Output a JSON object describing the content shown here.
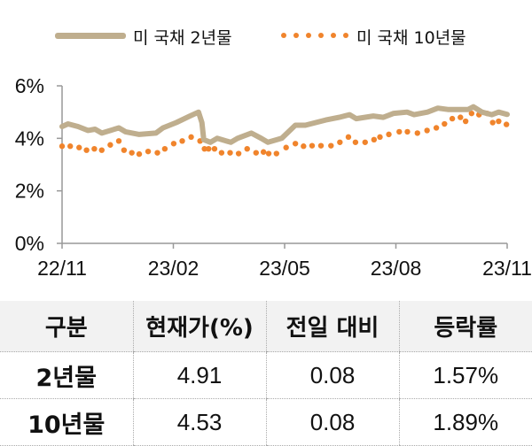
{
  "chart_data": {
    "type": "line",
    "title": "",
    "xlabel": "",
    "ylabel": "",
    "x_unit": "months since 22/11",
    "xlim": [
      0,
      12
    ],
    "ylim": [
      0,
      6
    ],
    "x_ticks": [
      {
        "x": 0,
        "label": "22/11"
      },
      {
        "x": 3,
        "label": "23/02"
      },
      {
        "x": 6,
        "label": "23/05"
      },
      {
        "x": 9,
        "label": "23/08"
      },
      {
        "x": 12,
        "label": "23/11"
      }
    ],
    "y_ticks": [
      {
        "y": 0,
        "label": "0%"
      },
      {
        "y": 2,
        "label": "2%"
      },
      {
        "y": 4,
        "label": "4%"
      },
      {
        "y": 6,
        "label": "6%"
      }
    ],
    "grid": false,
    "legend_position": "top",
    "series": [
      {
        "name": "미 국채 2년물",
        "style": "solid-thick",
        "color": "#bfae8e",
        "x": [
          0,
          0.16,
          0.43,
          0.7,
          0.89,
          1.07,
          1.53,
          1.71,
          2.08,
          2.53,
          2.72,
          3.08,
          3.45,
          3.68,
          3.77,
          3.82,
          4.0,
          4.18,
          4.55,
          4.73,
          5.1,
          5.37,
          5.55,
          5.92,
          6.29,
          6.56,
          7.11,
          7.47,
          7.75,
          7.93,
          8.39,
          8.66,
          8.94,
          9.3,
          9.49,
          9.85,
          10.13,
          10.4,
          10.95,
          11.09,
          11.32,
          11.59,
          11.77,
          12.0
        ],
        "y": [
          4.45,
          4.55,
          4.45,
          4.3,
          4.35,
          4.2,
          4.4,
          4.25,
          4.15,
          4.2,
          4.4,
          4.6,
          4.85,
          5.0,
          4.6,
          3.95,
          3.85,
          4.0,
          3.85,
          4.0,
          4.2,
          4.0,
          3.85,
          4.0,
          4.5,
          4.5,
          4.7,
          4.8,
          4.9,
          4.75,
          4.85,
          4.8,
          4.95,
          5.0,
          4.9,
          5.0,
          5.15,
          5.1,
          5.1,
          5.2,
          5.0,
          4.9,
          5.0,
          4.91
        ]
      },
      {
        "name": "미 국채 10년물",
        "style": "dotted",
        "color": "#f0842c",
        "x": [
          0,
          0.22,
          0.46,
          0.66,
          0.87,
          1.07,
          1.3,
          1.53,
          1.67,
          1.88,
          2.08,
          2.32,
          2.57,
          2.77,
          3.01,
          3.24,
          3.48,
          3.72,
          3.84,
          3.95,
          4.11,
          4.3,
          4.53,
          4.76,
          4.99,
          5.23,
          5.43,
          5.57,
          5.78,
          6.04,
          6.29,
          6.51,
          6.74,
          6.98,
          7.25,
          7.49,
          7.72,
          7.91,
          8.17,
          8.41,
          8.57,
          8.81,
          9.09,
          9.31,
          9.58,
          9.84,
          10.09,
          10.31,
          10.52,
          10.74,
          10.88,
          11.04,
          11.24,
          11.46,
          11.61,
          11.77,
          11.98
        ],
        "y": [
          3.7,
          3.7,
          3.65,
          3.55,
          3.6,
          3.55,
          3.75,
          3.9,
          3.55,
          3.45,
          3.4,
          3.5,
          3.45,
          3.6,
          3.8,
          3.9,
          4.05,
          3.9,
          3.6,
          3.6,
          3.6,
          3.45,
          3.45,
          3.42,
          3.6,
          3.45,
          3.48,
          3.42,
          3.42,
          3.65,
          3.8,
          3.7,
          3.72,
          3.72,
          3.72,
          3.85,
          4.05,
          3.85,
          3.85,
          3.95,
          4.05,
          4.15,
          4.25,
          4.25,
          4.2,
          4.3,
          4.4,
          4.55,
          4.75,
          4.8,
          4.65,
          4.95,
          4.9,
          4.95,
          4.6,
          4.65,
          4.53
        ]
      }
    ]
  },
  "legend": {
    "items": [
      "미 국채 2년물",
      "미 국채 10년물"
    ]
  },
  "table": {
    "headers": [
      "구분",
      "현재가(%)",
      "전일 대비",
      "등락률"
    ],
    "rows": [
      [
        "2년물",
        "4.91",
        "0.08",
        "1.57%"
      ],
      [
        "10년물",
        "4.53",
        "0.08",
        "1.89%"
      ]
    ]
  }
}
